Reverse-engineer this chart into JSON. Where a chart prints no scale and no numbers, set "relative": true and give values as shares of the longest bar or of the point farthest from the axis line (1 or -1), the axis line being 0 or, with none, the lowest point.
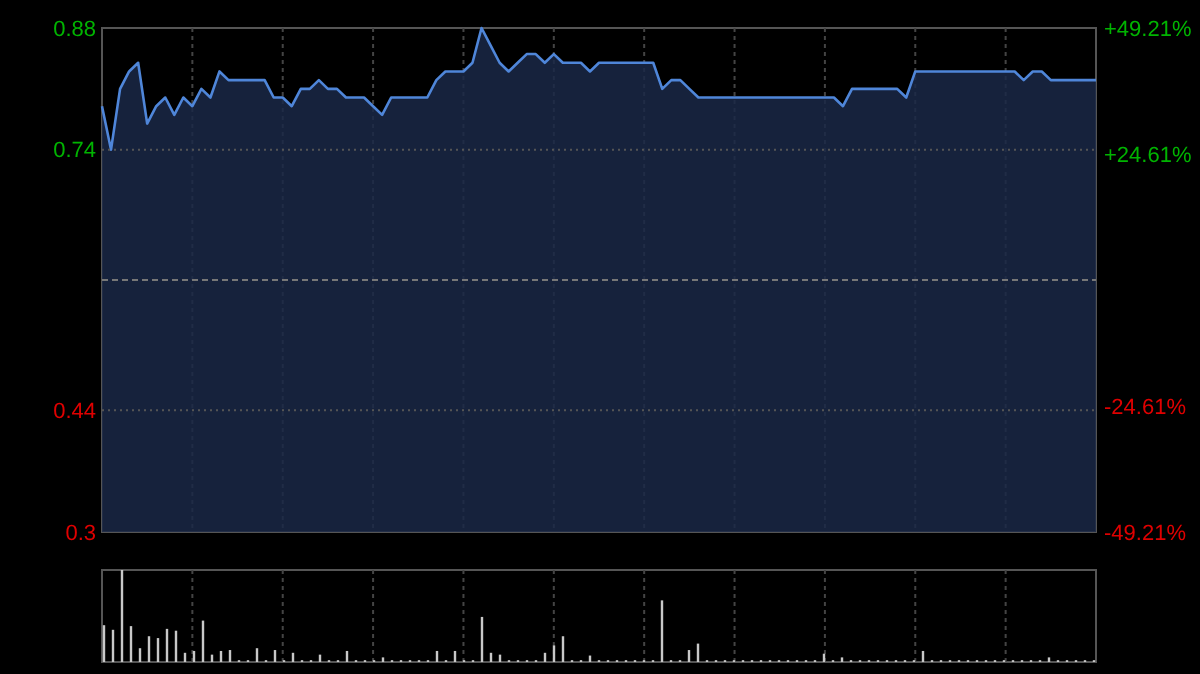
{
  "chart_data": [
    {
      "type": "area",
      "categories": [
        null,
        null,
        null,
        null,
        null,
        null,
        null,
        null,
        null,
        null,
        null,
        null,
        null,
        null,
        null,
        null,
        null,
        null,
        null,
        null,
        null,
        null,
        null,
        null,
        null,
        null,
        null,
        null,
        null,
        null,
        null,
        null,
        null,
        null,
        null,
        null,
        null,
        null,
        null,
        null,
        null,
        null,
        null,
        null,
        null,
        null,
        null,
        null,
        null,
        null,
        null,
        null,
        null,
        null,
        null,
        null,
        null,
        null,
        null,
        null,
        null,
        null,
        null,
        null,
        null,
        null,
        null,
        null,
        null,
        null,
        null,
        null,
        null,
        null,
        null,
        null,
        null,
        null,
        null,
        null,
        null,
        null,
        null,
        null,
        null,
        null,
        null,
        null,
        null,
        null,
        null,
        null,
        null,
        null,
        null,
        null,
        null,
        null,
        null,
        null,
        null,
        null,
        null,
        null,
        null,
        null,
        null,
        null,
        null,
        null,
        null
      ],
      "series": [
        {
          "color": "#4f86d9",
          "values": [
            0.79,
            0.74,
            0.81,
            0.83,
            0.84,
            0.77,
            0.79,
            0.8,
            0.78,
            0.8,
            0.79,
            0.81,
            0.8,
            0.83,
            0.82,
            0.82,
            0.82,
            0.82,
            0.82,
            0.8,
            0.8,
            0.79,
            0.81,
            0.81,
            0.82,
            0.81,
            0.81,
            0.8,
            0.8,
            0.8,
            0.79,
            0.78,
            0.8,
            0.8,
            0.8,
            0.8,
            0.8,
            0.82,
            0.83,
            0.83,
            0.83,
            0.84,
            0.88,
            0.86,
            0.84,
            0.83,
            0.84,
            0.85,
            0.85,
            0.84,
            0.85,
            0.84,
            0.84,
            0.84,
            0.83,
            0.84,
            0.84,
            0.84,
            0.84,
            0.84,
            0.84,
            0.84,
            0.81,
            0.82,
            0.82,
            0.81,
            0.8,
            0.8,
            0.8,
            0.8,
            0.8,
            0.8,
            0.8,
            0.8,
            0.8,
            0.8,
            0.8,
            0.8,
            0.8,
            0.8,
            0.8,
            0.8,
            0.79,
            0.81,
            0.81,
            0.81,
            0.81,
            0.81,
            0.81,
            0.8,
            0.83,
            0.83,
            0.83,
            0.83,
            0.83,
            0.83,
            0.83,
            0.83,
            0.83,
            0.83,
            0.83,
            0.83,
            0.82,
            0.83,
            0.83,
            0.82,
            0.82,
            0.82,
            0.82,
            0.82,
            0.82
          ]
        }
      ],
      "ylim": [
        0.3,
        0.88
      ],
      "yticks": [
        0.88,
        0.74,
        0.44,
        0.3
      ],
      "ref_lines": [
        {
          "axis": "y",
          "value": 0.59,
          "color": "#777777",
          "line_style": "dashed"
        }
      ],
      "y2lim": [
        -49.21,
        49.21
      ],
      "y2ticks": [
        {
          "value": 49.21,
          "label": "+49.21%"
        },
        {
          "value": 24.61,
          "label": "+24.61%"
        },
        {
          "value": -24.61,
          "label": "-24.61%"
        },
        {
          "value": -49.21,
          "label": "-49.21%"
        }
      ],
      "grid": true,
      "tick_labels": "y"
    },
    {
      "type": "bar",
      "relative": true,
      "color": "#c8c8c8",
      "categories": [
        null,
        null,
        null,
        null,
        null,
        null,
        null,
        null,
        null,
        null,
        null,
        null,
        null,
        null,
        null,
        null,
        null,
        null,
        null,
        null,
        null,
        null,
        null,
        null,
        null,
        null,
        null,
        null,
        null,
        null,
        null,
        null,
        null,
        null,
        null,
        null,
        null,
        null,
        null,
        null,
        null,
        null,
        null,
        null,
        null,
        null,
        null,
        null,
        null,
        null,
        null,
        null,
        null,
        null,
        null,
        null,
        null,
        null,
        null,
        null,
        null,
        null,
        null,
        null,
        null,
        null,
        null,
        null,
        null,
        null,
        null,
        null,
        null,
        null,
        null,
        null,
        null,
        null,
        null,
        null,
        null,
        null,
        null,
        null,
        null,
        null,
        null,
        null,
        null,
        null,
        null,
        null,
        null,
        null,
        null,
        null,
        null,
        null,
        null,
        null,
        null,
        null,
        null,
        null,
        null,
        null,
        null,
        null,
        null,
        null,
        null
      ],
      "values": [
        0.4,
        0.35,
        1,
        0.39,
        0.15,
        0.28,
        0.26,
        0.36,
        0.34,
        0.1,
        0.12,
        0.45,
        0.08,
        0.12,
        0.13,
        0.02,
        0.02,
        0.15,
        0.02,
        0.13,
        0.02,
        0.1,
        0.02,
        0.02,
        0.08,
        0.02,
        0.02,
        0.12,
        0.02,
        0.02,
        0.02,
        0.05,
        0.02,
        0.02,
        0.02,
        0.02,
        0.02,
        0.12,
        0.02,
        0.12,
        0.02,
        0.02,
        0.49,
        0.1,
        0.08,
        0.02,
        0.02,
        0.02,
        0.02,
        0.1,
        0.18,
        0.28,
        0.02,
        0.02,
        0.07,
        0.02,
        0.02,
        0.02,
        0.02,
        0.02,
        0.02,
        0.02,
        0.67,
        0.02,
        0.02,
        0.13,
        0.2,
        0.02,
        0.02,
        0.02,
        0.02,
        0.02,
        0.02,
        0.02,
        0.02,
        0.02,
        0.02,
        0.02,
        0.02,
        0.02,
        0.09,
        0.02,
        0.05,
        0.02,
        0.02,
        0.02,
        0.02,
        0.02,
        0.02,
        0.02,
        0.02,
        0.12,
        0.02,
        0.02,
        0.02,
        0.02,
        0.02,
        0.02,
        0.02,
        0.02,
        0.02,
        0.02,
        0.02,
        0.02,
        0.02,
        0.05,
        0.02,
        0.02,
        0.02,
        0.02,
        0.02
      ],
      "grid": true,
      "tick_labels": false
    }
  ]
}
